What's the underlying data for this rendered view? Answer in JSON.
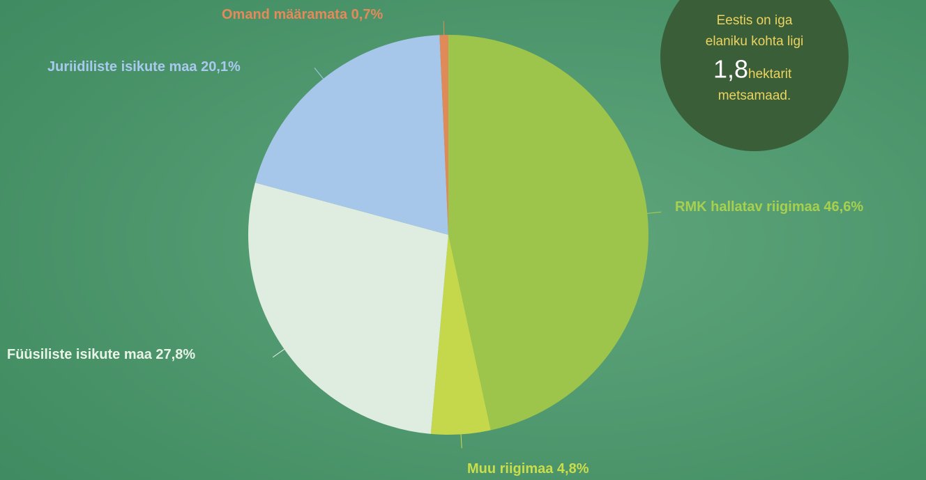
{
  "chart_data": {
    "type": "pie",
    "categories": [
      "RMK hallatav riigimaa",
      "Muu riigimaa",
      "Füüsiliste isikute maa",
      "Juriidiliste isikute maa",
      "Omand määramata"
    ],
    "values": [
      46.6,
      4.8,
      27.8,
      20.1,
      0.7
    ],
    "value_labels": [
      "46,6%",
      "4,8%",
      "27,8%",
      "20,1%",
      "0,7%"
    ],
    "colors": [
      "#9dc44b",
      "#c5d84b",
      "#deeddf",
      "#a6c6ea",
      "#e08a5a"
    ],
    "label_colors": [
      "#a8d04f",
      "#cadd4a",
      "#e9f3e7",
      "#a9c9ee",
      "#e5895a"
    ],
    "annotation": {
      "lines": [
        "Eestis on iga",
        "elaniku kohta ligi"
      ],
      "value": "1,8",
      "unit": "hektarit",
      "tail": "metsamaad."
    }
  }
}
